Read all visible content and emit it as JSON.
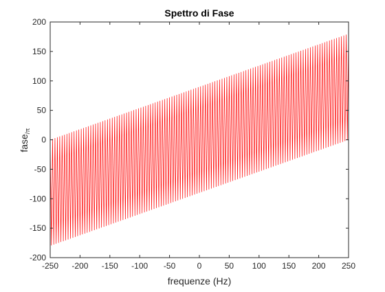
{
  "chart_data": {
    "type": "line",
    "title": "Spettro di Fase",
    "xlabel": "frequenze (Hz)",
    "ylabel_main": "fase",
    "ylabel_sub": "/π",
    "xlim": [
      -250,
      250
    ],
    "ylim": [
      -200,
      200
    ],
    "x_ticks": [
      -250,
      -200,
      -150,
      -100,
      -50,
      0,
      50,
      100,
      150,
      200,
      250
    ],
    "y_ticks": [
      -200,
      -150,
      -100,
      -50,
      0,
      50,
      100,
      150,
      200
    ],
    "grid": false,
    "box": true,
    "series": [
      {
        "color": "#ff0000",
        "pattern": "alternating",
        "frequency_range": [
          -250,
          250
        ],
        "frequency_step": 2,
        "upper_envelope": {
          "at_xmin": 0,
          "at_xmax": 180
        },
        "lower_envelope": {
          "at_xmin": -180,
          "at_xmax": 0
        }
      }
    ]
  }
}
